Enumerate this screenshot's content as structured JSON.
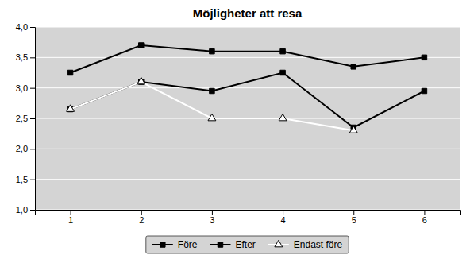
{
  "chart_data": {
    "type": "line",
    "title": "Möjligheter att resa",
    "x": [
      1,
      2,
      3,
      4,
      5,
      6
    ],
    "series": [
      {
        "name": "Före",
        "color": "#000000",
        "marker": "square",
        "values": [
          3.25,
          3.7,
          3.6,
          3.6,
          3.35,
          3.5
        ]
      },
      {
        "name": "Efter",
        "color": "#000000",
        "marker": "square",
        "values": [
          2.65,
          3.1,
          2.95,
          3.25,
          2.35,
          2.95
        ]
      },
      {
        "name": "Endast före",
        "color": "#ffffff",
        "marker": "triangle",
        "values": [
          2.65,
          3.1,
          2.5,
          2.5,
          2.3,
          null
        ]
      }
    ],
    "xlim": [
      0.5,
      6.5
    ],
    "xticks": [
      1,
      2,
      3,
      4,
      5,
      6
    ],
    "ylim": [
      1.0,
      4.0
    ],
    "yticks": [
      {
        "value": 1.0,
        "label": "1,0"
      },
      {
        "value": 1.5,
        "label": "1,5"
      },
      {
        "value": 2.0,
        "label": "2,0"
      },
      {
        "value": 2.5,
        "label": "2,5"
      },
      {
        "value": 3.0,
        "label": "3,0"
      },
      {
        "value": 3.5,
        "label": "3,5"
      },
      {
        "value": 4.0,
        "label": "4,0"
      }
    ],
    "grid": true,
    "legend": "bottom"
  }
}
